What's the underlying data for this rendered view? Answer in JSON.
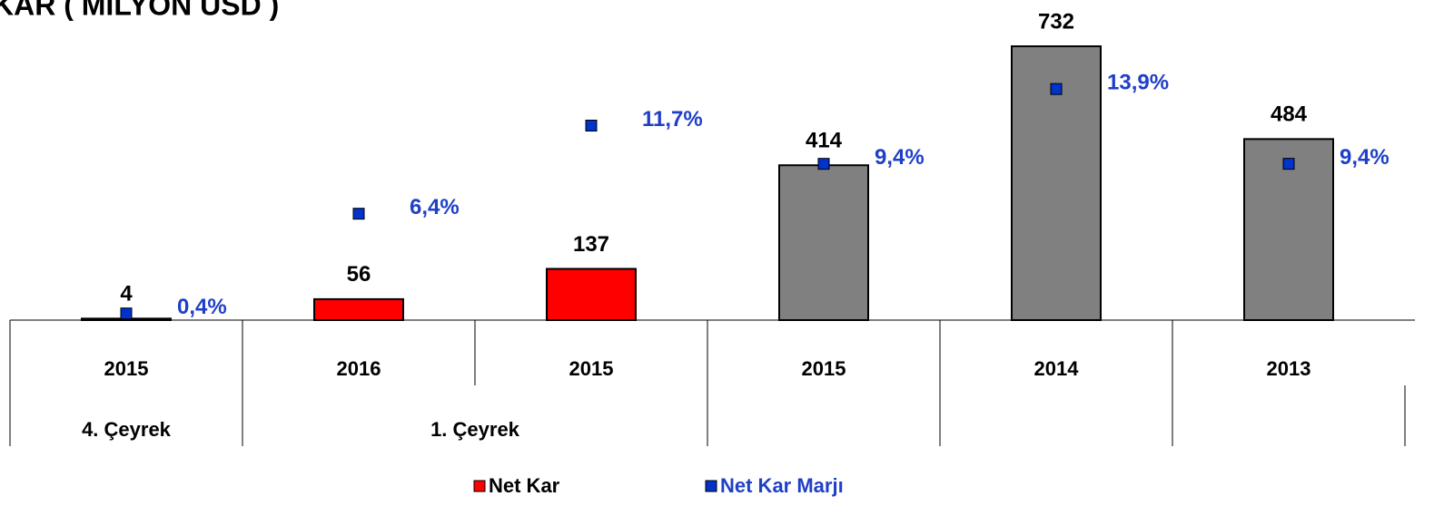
{
  "chart_data": {
    "type": "bar",
    "title": "KAR ( MİLYON USD )",
    "categories": [
      "2015",
      "2016",
      "2015",
      "2015",
      "2014",
      "2013"
    ],
    "category_groups": [
      {
        "label": "4. Çeyrek",
        "span": 1
      },
      {
        "label": "1. Çeyrek",
        "span": 2
      }
    ],
    "series": [
      {
        "name": "Net Kar",
        "color": "#ff0000",
        "colors": [
          "#808080",
          "#ff0000",
          "#ff0000",
          "#808080",
          "#808080",
          "#808080"
        ],
        "values": [
          4,
          56,
          137,
          414,
          732,
          484
        ]
      },
      {
        "name": "Net Kar Marjı",
        "color": "#0033cc",
        "axis": "y2",
        "marker": "square",
        "values": [
          0.4,
          6.4,
          11.7,
          9.4,
          13.9,
          9.4
        ],
        "value_labels": [
          "0,4%",
          "6,4%",
          "11,7%",
          "9,4%",
          "13,9%",
          "9,4%"
        ]
      }
    ],
    "ylim": [
      0,
      800
    ],
    "yticks": [],
    "y2lim": [
      0,
      18
    ],
    "y2ticks": [],
    "grid": false,
    "legend": "bottom"
  }
}
